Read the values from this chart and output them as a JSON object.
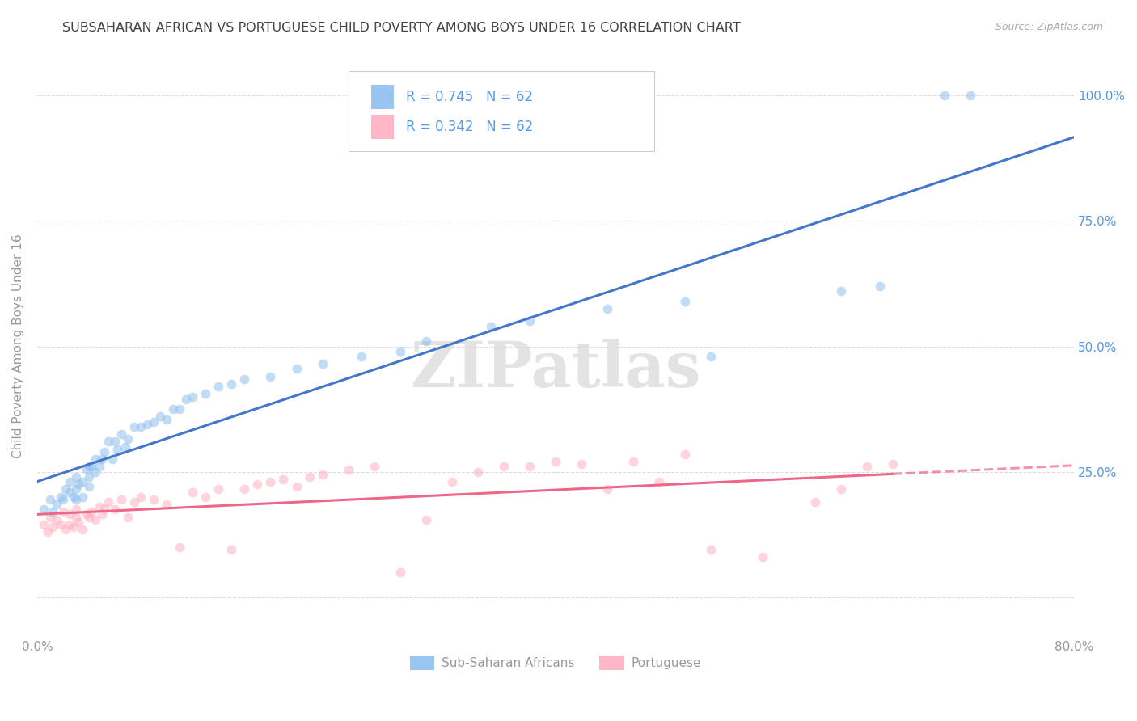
{
  "title": "SUBSAHARAN AFRICAN VS PORTUGUESE CHILD POVERTY AMONG BOYS UNDER 16 CORRELATION CHART",
  "source": "Source: ZipAtlas.com",
  "ylabel": "Child Poverty Among Boys Under 16",
  "xlim": [
    0.0,
    0.8
  ],
  "ylim": [
    -0.08,
    1.08
  ],
  "x_ticks": [
    0.0,
    0.1,
    0.2,
    0.3,
    0.4,
    0.5,
    0.6,
    0.7,
    0.8
  ],
  "x_tick_labels": [
    "0.0%",
    "",
    "",
    "",
    "",
    "",
    "",
    "",
    "80.0%"
  ],
  "y_ticks_right": [
    0.0,
    0.25,
    0.5,
    0.75,
    1.0
  ],
  "y_tick_right_labels": [
    "",
    "25.0%",
    "50.0%",
    "75.0%",
    "100.0%"
  ],
  "blue_R": "R = 0.745",
  "blue_N": "N = 62",
  "pink_R": "R = 0.342",
  "pink_N": "N = 62",
  "blue_scatter_color": "#88BBEE",
  "pink_scatter_color": "#FFAABC",
  "blue_line_color": "#4477CC",
  "pink_line_color": "#EE6688",
  "right_tick_color": "#5599EE",
  "legend_blue_label": "Sub-Saharan Africans",
  "legend_pink_label": "Portuguese",
  "watermark": "ZIPatlas",
  "grid_color": "#DDDDDD",
  "bg_color": "#FFFFFF",
  "title_color": "#444444",
  "axis_label_color": "#999999",
  "scatter_size": 72,
  "scatter_alpha": 0.5,
  "line_width": 2.2,
  "blue_scatter_x": [
    0.005,
    0.01,
    0.012,
    0.015,
    0.018,
    0.02,
    0.022,
    0.025,
    0.025,
    0.028,
    0.03,
    0.03,
    0.03,
    0.032,
    0.035,
    0.035,
    0.038,
    0.04,
    0.04,
    0.04,
    0.042,
    0.045,
    0.045,
    0.048,
    0.05,
    0.052,
    0.055,
    0.058,
    0.06,
    0.062,
    0.065,
    0.068,
    0.07,
    0.075,
    0.08,
    0.085,
    0.09,
    0.095,
    0.1,
    0.105,
    0.11,
    0.115,
    0.12,
    0.13,
    0.14,
    0.15,
    0.16,
    0.18,
    0.2,
    0.22,
    0.25,
    0.28,
    0.3,
    0.35,
    0.38,
    0.44,
    0.5,
    0.52,
    0.62,
    0.65,
    0.7,
    0.72
  ],
  "blue_scatter_y": [
    0.175,
    0.195,
    0.17,
    0.185,
    0.2,
    0.195,
    0.215,
    0.21,
    0.23,
    0.2,
    0.195,
    0.215,
    0.24,
    0.225,
    0.23,
    0.2,
    0.255,
    0.24,
    0.26,
    0.22,
    0.26,
    0.25,
    0.275,
    0.26,
    0.275,
    0.29,
    0.31,
    0.275,
    0.31,
    0.295,
    0.325,
    0.3,
    0.315,
    0.34,
    0.34,
    0.345,
    0.35,
    0.36,
    0.355,
    0.375,
    0.375,
    0.395,
    0.4,
    0.405,
    0.42,
    0.425,
    0.435,
    0.44,
    0.455,
    0.465,
    0.48,
    0.49,
    0.51,
    0.54,
    0.55,
    0.575,
    0.59,
    0.48,
    0.61,
    0.62,
    1.0,
    1.0
  ],
  "pink_scatter_x": [
    0.005,
    0.008,
    0.01,
    0.012,
    0.015,
    0.018,
    0.02,
    0.022,
    0.025,
    0.025,
    0.028,
    0.03,
    0.03,
    0.032,
    0.035,
    0.038,
    0.04,
    0.042,
    0.045,
    0.048,
    0.05,
    0.052,
    0.055,
    0.06,
    0.065,
    0.07,
    0.075,
    0.08,
    0.09,
    0.1,
    0.11,
    0.12,
    0.13,
    0.14,
    0.15,
    0.16,
    0.17,
    0.18,
    0.19,
    0.2,
    0.21,
    0.22,
    0.24,
    0.26,
    0.28,
    0.3,
    0.32,
    0.34,
    0.36,
    0.38,
    0.4,
    0.42,
    0.44,
    0.46,
    0.48,
    0.5,
    0.52,
    0.56,
    0.6,
    0.62,
    0.64,
    0.66
  ],
  "pink_scatter_y": [
    0.145,
    0.13,
    0.16,
    0.14,
    0.155,
    0.145,
    0.17,
    0.135,
    0.145,
    0.165,
    0.14,
    0.16,
    0.175,
    0.15,
    0.135,
    0.165,
    0.16,
    0.17,
    0.155,
    0.18,
    0.165,
    0.175,
    0.19,
    0.175,
    0.195,
    0.16,
    0.19,
    0.2,
    0.195,
    0.185,
    0.1,
    0.21,
    0.2,
    0.215,
    0.095,
    0.215,
    0.225,
    0.23,
    0.235,
    0.22,
    0.24,
    0.245,
    0.255,
    0.26,
    0.05,
    0.155,
    0.23,
    0.25,
    0.26,
    0.26,
    0.27,
    0.265,
    0.215,
    0.27,
    0.23,
    0.285,
    0.095,
    0.08,
    0.19,
    0.215,
    0.26,
    0.265
  ]
}
